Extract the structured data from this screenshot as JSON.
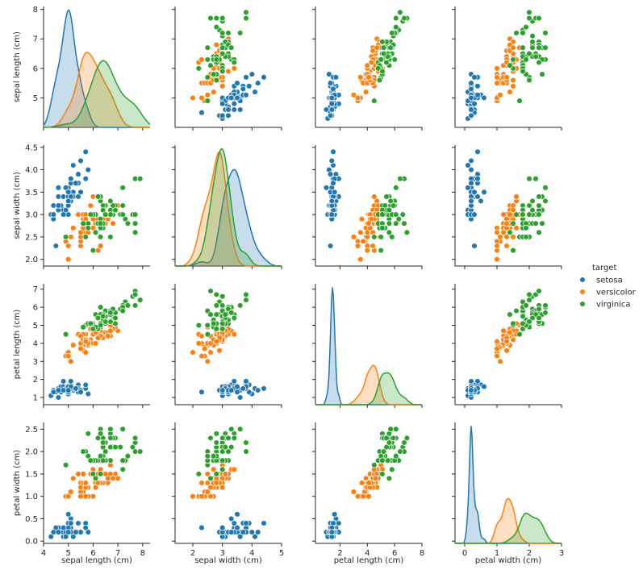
{
  "chart_data": {
    "type": "scatter",
    "variables": [
      {
        "key": "sepal_length",
        "label": "sepal length (cm)",
        "lim": [
          4.0,
          8.3
        ],
        "ticks": [
          4,
          5,
          6,
          7,
          8
        ],
        "y_lim": [
          4.0,
          8.1
        ],
        "y_ticks": [
          5,
          6,
          7,
          8
        ]
      },
      {
        "key": "sepal_width",
        "label": "sepal width (cm)",
        "lim": [
          1.4,
          5.0
        ],
        "ticks": [
          2,
          3,
          4,
          5
        ],
        "y_lim": [
          1.85,
          4.55
        ],
        "y_ticks": [
          2.0,
          2.5,
          3.0,
          3.5,
          4.0,
          4.5
        ]
      },
      {
        "key": "petal_length",
        "label": "petal length (cm)",
        "lim": [
          0.2,
          8.0
        ],
        "ticks": [
          2,
          4,
          6,
          8
        ],
        "y_lim": [
          0.6,
          7.3
        ],
        "y_ticks": [
          1,
          2,
          3,
          4,
          5,
          6,
          7
        ]
      },
      {
        "key": "petal_width",
        "label": "petal width (cm)",
        "lim": [
          -0.3,
          3.0
        ],
        "ticks": [
          0,
          1,
          2,
          3
        ],
        "y_lim": [
          -0.05,
          2.65
        ],
        "y_ticks": [
          0.0,
          0.5,
          1.0,
          1.5,
          2.0,
          2.5
        ]
      }
    ],
    "legend": {
      "title": "target",
      "position": "right"
    },
    "series": [
      {
        "name": "setosa",
        "color": "#1f77b4",
        "points": [
          [
            5.1,
            3.5,
            1.4,
            0.2
          ],
          [
            4.9,
            3.0,
            1.4,
            0.2
          ],
          [
            4.7,
            3.2,
            1.3,
            0.2
          ],
          [
            4.6,
            3.1,
            1.5,
            0.2
          ],
          [
            5.0,
            3.6,
            1.4,
            0.2
          ],
          [
            5.4,
            3.9,
            1.7,
            0.4
          ],
          [
            4.6,
            3.4,
            1.4,
            0.3
          ],
          [
            5.0,
            3.4,
            1.5,
            0.2
          ],
          [
            4.4,
            2.9,
            1.4,
            0.2
          ],
          [
            4.9,
            3.1,
            1.5,
            0.1
          ],
          [
            5.4,
            3.7,
            1.5,
            0.2
          ],
          [
            4.8,
            3.4,
            1.6,
            0.2
          ],
          [
            4.8,
            3.0,
            1.4,
            0.1
          ],
          [
            4.3,
            3.0,
            1.1,
            0.1
          ],
          [
            5.8,
            4.0,
            1.2,
            0.2
          ],
          [
            5.7,
            4.4,
            1.5,
            0.4
          ],
          [
            5.4,
            3.9,
            1.3,
            0.4
          ],
          [
            5.1,
            3.5,
            1.4,
            0.3
          ],
          [
            5.7,
            3.8,
            1.7,
            0.3
          ],
          [
            5.1,
            3.8,
            1.5,
            0.3
          ],
          [
            5.4,
            3.4,
            1.7,
            0.2
          ],
          [
            5.1,
            3.7,
            1.5,
            0.4
          ],
          [
            4.6,
            3.6,
            1.0,
            0.2
          ],
          [
            5.1,
            3.3,
            1.7,
            0.5
          ],
          [
            4.8,
            3.4,
            1.9,
            0.2
          ],
          [
            5.0,
            3.0,
            1.6,
            0.2
          ],
          [
            5.0,
            3.4,
            1.6,
            0.4
          ],
          [
            5.2,
            3.5,
            1.5,
            0.2
          ],
          [
            5.2,
            3.4,
            1.4,
            0.2
          ],
          [
            4.7,
            3.2,
            1.6,
            0.2
          ],
          [
            4.8,
            3.1,
            1.6,
            0.2
          ],
          [
            5.4,
            3.4,
            1.5,
            0.4
          ],
          [
            5.2,
            4.1,
            1.5,
            0.1
          ],
          [
            5.5,
            4.2,
            1.4,
            0.2
          ],
          [
            4.9,
            3.1,
            1.5,
            0.2
          ],
          [
            5.0,
            3.2,
            1.2,
            0.2
          ],
          [
            5.5,
            3.5,
            1.3,
            0.2
          ],
          [
            4.9,
            3.6,
            1.4,
            0.1
          ],
          [
            4.4,
            3.0,
            1.3,
            0.2
          ],
          [
            5.1,
            3.4,
            1.5,
            0.2
          ],
          [
            5.0,
            3.5,
            1.3,
            0.3
          ],
          [
            4.5,
            2.3,
            1.3,
            0.3
          ],
          [
            4.4,
            3.2,
            1.3,
            0.2
          ],
          [
            5.0,
            3.5,
            1.6,
            0.6
          ],
          [
            5.1,
            3.8,
            1.9,
            0.4
          ],
          [
            4.8,
            3.0,
            1.4,
            0.3
          ],
          [
            5.1,
            3.8,
            1.6,
            0.2
          ],
          [
            4.6,
            3.2,
            1.4,
            0.2
          ],
          [
            5.3,
            3.7,
            1.5,
            0.2
          ],
          [
            5.0,
            3.3,
            1.4,
            0.2
          ]
        ]
      },
      {
        "name": "versicolor",
        "color": "#ff7f0e",
        "points": [
          [
            7.0,
            3.2,
            4.7,
            1.4
          ],
          [
            6.4,
            3.2,
            4.5,
            1.5
          ],
          [
            6.9,
            3.1,
            4.9,
            1.5
          ],
          [
            5.5,
            2.3,
            4.0,
            1.3
          ],
          [
            6.5,
            2.8,
            4.6,
            1.5
          ],
          [
            5.7,
            2.8,
            4.5,
            1.3
          ],
          [
            6.3,
            3.3,
            4.7,
            1.6
          ],
          [
            4.9,
            2.4,
            3.3,
            1.0
          ],
          [
            6.6,
            2.9,
            4.6,
            1.3
          ],
          [
            5.2,
            2.7,
            3.9,
            1.4
          ],
          [
            5.0,
            2.0,
            3.5,
            1.0
          ],
          [
            5.9,
            3.0,
            4.2,
            1.5
          ],
          [
            6.0,
            2.2,
            4.0,
            1.0
          ],
          [
            6.1,
            2.9,
            4.7,
            1.4
          ],
          [
            5.6,
            2.9,
            3.6,
            1.3
          ],
          [
            6.7,
            3.1,
            4.4,
            1.4
          ],
          [
            5.6,
            3.0,
            4.5,
            1.5
          ],
          [
            5.8,
            2.7,
            4.1,
            1.0
          ],
          [
            6.2,
            2.2,
            4.5,
            1.5
          ],
          [
            5.6,
            2.5,
            3.9,
            1.1
          ],
          [
            5.9,
            3.2,
            4.8,
            1.8
          ],
          [
            6.1,
            2.8,
            4.0,
            1.3
          ],
          [
            6.3,
            2.5,
            4.9,
            1.5
          ],
          [
            6.1,
            2.8,
            4.7,
            1.2
          ],
          [
            6.4,
            2.9,
            4.3,
            1.3
          ],
          [
            6.6,
            3.0,
            4.4,
            1.4
          ],
          [
            6.8,
            2.8,
            4.8,
            1.4
          ],
          [
            6.7,
            3.0,
            5.0,
            1.7
          ],
          [
            6.0,
            2.9,
            4.5,
            1.5
          ],
          [
            5.7,
            2.6,
            3.5,
            1.0
          ],
          [
            5.5,
            2.4,
            3.8,
            1.1
          ],
          [
            5.5,
            2.4,
            3.7,
            1.0
          ],
          [
            5.8,
            2.7,
            3.9,
            1.2
          ],
          [
            6.0,
            2.7,
            5.1,
            1.6
          ],
          [
            5.4,
            3.0,
            4.5,
            1.5
          ],
          [
            6.0,
            3.4,
            4.5,
            1.6
          ],
          [
            6.7,
            3.1,
            4.7,
            1.5
          ],
          [
            6.3,
            2.3,
            4.4,
            1.3
          ],
          [
            5.6,
            3.0,
            4.1,
            1.3
          ],
          [
            5.5,
            2.5,
            4.0,
            1.3
          ],
          [
            5.5,
            2.6,
            4.4,
            1.2
          ],
          [
            6.1,
            3.0,
            4.6,
            1.4
          ],
          [
            5.8,
            2.6,
            4.0,
            1.2
          ],
          [
            5.0,
            2.3,
            3.3,
            1.0
          ],
          [
            5.6,
            2.7,
            4.2,
            1.3
          ],
          [
            5.7,
            3.0,
            4.2,
            1.2
          ],
          [
            5.7,
            2.9,
            4.2,
            1.3
          ],
          [
            6.2,
            2.9,
            4.3,
            1.3
          ],
          [
            5.1,
            2.5,
            3.0,
            1.1
          ],
          [
            5.7,
            2.8,
            4.1,
            1.3
          ]
        ]
      },
      {
        "name": "virginica",
        "color": "#2ca02c",
        "points": [
          [
            6.3,
            3.3,
            6.0,
            2.5
          ],
          [
            5.8,
            2.7,
            5.1,
            1.9
          ],
          [
            7.1,
            3.0,
            5.9,
            2.1
          ],
          [
            6.3,
            2.9,
            5.6,
            1.8
          ],
          [
            6.5,
            3.0,
            5.8,
            2.2
          ],
          [
            7.6,
            3.0,
            6.6,
            2.1
          ],
          [
            4.9,
            2.5,
            4.5,
            1.7
          ],
          [
            7.3,
            2.9,
            6.3,
            1.8
          ],
          [
            6.7,
            2.5,
            5.8,
            1.8
          ],
          [
            7.2,
            3.6,
            6.1,
            2.5
          ],
          [
            6.5,
            3.2,
            5.1,
            2.0
          ],
          [
            6.4,
            2.7,
            5.3,
            1.9
          ],
          [
            6.8,
            3.0,
            5.5,
            2.1
          ],
          [
            5.7,
            2.5,
            5.0,
            2.0
          ],
          [
            5.8,
            2.8,
            5.1,
            2.4
          ],
          [
            6.4,
            3.2,
            5.3,
            2.3
          ],
          [
            6.5,
            3.0,
            5.5,
            1.8
          ],
          [
            7.7,
            3.8,
            6.7,
            2.2
          ],
          [
            7.7,
            2.6,
            6.9,
            2.3
          ],
          [
            6.0,
            2.2,
            5.0,
            1.5
          ],
          [
            6.9,
            3.2,
            5.7,
            2.3
          ],
          [
            5.6,
            2.8,
            4.9,
            2.0
          ],
          [
            7.7,
            2.8,
            6.7,
            2.0
          ],
          [
            6.3,
            2.7,
            4.9,
            1.8
          ],
          [
            6.7,
            3.3,
            5.7,
            2.1
          ],
          [
            7.2,
            3.2,
            6.0,
            1.8
          ],
          [
            6.2,
            2.8,
            4.8,
            1.8
          ],
          [
            6.1,
            3.0,
            4.9,
            1.8
          ],
          [
            6.4,
            2.8,
            5.6,
            2.1
          ],
          [
            7.2,
            3.0,
            5.8,
            1.6
          ],
          [
            7.4,
            2.8,
            6.1,
            1.9
          ],
          [
            7.9,
            3.8,
            6.4,
            2.0
          ],
          [
            6.4,
            2.8,
            5.6,
            2.2
          ],
          [
            6.3,
            2.8,
            5.1,
            1.5
          ],
          [
            6.1,
            2.6,
            5.6,
            1.4
          ],
          [
            7.7,
            3.0,
            6.1,
            2.3
          ],
          [
            6.3,
            3.4,
            5.6,
            2.4
          ],
          [
            6.4,
            3.1,
            5.5,
            1.8
          ],
          [
            6.0,
            3.0,
            4.8,
            1.8
          ],
          [
            6.9,
            3.1,
            5.4,
            2.1
          ],
          [
            6.7,
            3.1,
            5.6,
            2.4
          ],
          [
            6.9,
            3.1,
            5.1,
            2.3
          ],
          [
            5.8,
            2.7,
            5.1,
            1.9
          ],
          [
            6.8,
            3.2,
            5.9,
            2.3
          ],
          [
            6.7,
            3.3,
            5.7,
            2.5
          ],
          [
            6.7,
            3.0,
            5.2,
            2.3
          ],
          [
            6.3,
            2.5,
            5.0,
            1.9
          ],
          [
            6.5,
            3.0,
            5.2,
            2.0
          ],
          [
            6.2,
            3.4,
            5.4,
            2.3
          ],
          [
            5.9,
            3.0,
            5.1,
            1.8
          ]
        ]
      }
    ]
  }
}
